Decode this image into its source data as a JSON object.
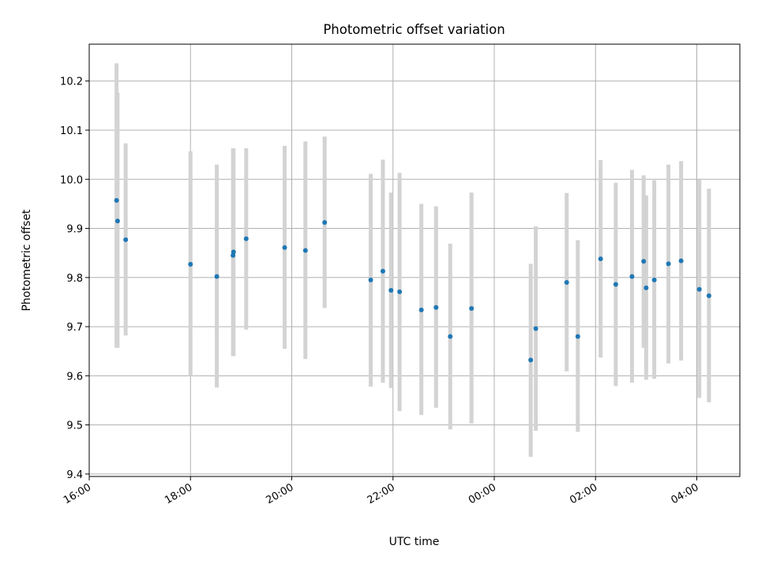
{
  "chart_data": {
    "type": "scatter",
    "title": "Photometric offset variation",
    "xlabel": "UTC time",
    "ylabel": "Photometric offset",
    "x_unit": "hours (UTC, continuing past midnight)",
    "xlim": [
      16.0,
      28.85
    ],
    "ylim": [
      9.395,
      10.275
    ],
    "grid": true,
    "x_ticks": [
      {
        "value": 16,
        "label": "16:00"
      },
      {
        "value": 18,
        "label": "18:00"
      },
      {
        "value": 20,
        "label": "20:00"
      },
      {
        "value": 22,
        "label": "22:00"
      },
      {
        "value": 24,
        "label": "00:00"
      },
      {
        "value": 26,
        "label": "02:00"
      },
      {
        "value": 28,
        "label": "04:00"
      }
    ],
    "y_ticks": [
      {
        "value": 9.4,
        "label": "9.4"
      },
      {
        "value": 9.5,
        "label": "9.5"
      },
      {
        "value": 9.6,
        "label": "9.6"
      },
      {
        "value": 9.7,
        "label": "9.7"
      },
      {
        "value": 9.8,
        "label": "9.8"
      },
      {
        "value": 9.9,
        "label": "9.9"
      },
      {
        "value": 10.0,
        "label": "10.0"
      },
      {
        "value": 10.1,
        "label": "10.1"
      },
      {
        "value": 10.2,
        "label": "10.2"
      }
    ],
    "series": [
      {
        "marker_color": "#1f77b4",
        "errorbar_color": "#d3d3d3",
        "points": [
          {
            "x": 16.54,
            "y": 9.957,
            "ylow": 9.657,
            "yhigh": 10.236
          },
          {
            "x": 16.56,
            "y": 9.915,
            "ylow": 9.657,
            "yhigh": 10.176
          },
          {
            "x": 16.72,
            "y": 9.877,
            "ylow": 9.682,
            "yhigh": 10.073
          },
          {
            "x": 18.0,
            "y": 9.827,
            "ylow": 9.6,
            "yhigh": 10.057
          },
          {
            "x": 18.52,
            "y": 9.802,
            "ylow": 9.576,
            "yhigh": 10.03
          },
          {
            "x": 18.84,
            "y": 9.845,
            "ylow": 9.64,
            "yhigh": 10.063
          },
          {
            "x": 18.85,
            "y": 9.852,
            "ylow": 9.64,
            "yhigh": 10.063
          },
          {
            "x": 19.1,
            "y": 9.879,
            "ylow": 9.694,
            "yhigh": 10.063
          },
          {
            "x": 19.86,
            "y": 9.861,
            "ylow": 9.655,
            "yhigh": 10.068
          },
          {
            "x": 20.27,
            "y": 9.855,
            "ylow": 9.634,
            "yhigh": 10.077
          },
          {
            "x": 20.65,
            "y": 9.912,
            "ylow": 9.738,
            "yhigh": 10.087
          },
          {
            "x": 21.56,
            "y": 9.795,
            "ylow": 9.578,
            "yhigh": 10.011
          },
          {
            "x": 21.8,
            "y": 9.813,
            "ylow": 9.586,
            "yhigh": 10.04
          },
          {
            "x": 21.96,
            "y": 9.774,
            "ylow": 9.575,
            "yhigh": 9.973
          },
          {
            "x": 22.13,
            "y": 9.771,
            "ylow": 9.528,
            "yhigh": 10.013
          },
          {
            "x": 22.56,
            "y": 9.734,
            "ylow": 9.52,
            "yhigh": 9.95
          },
          {
            "x": 22.85,
            "y": 9.739,
            "ylow": 9.535,
            "yhigh": 9.945
          },
          {
            "x": 23.13,
            "y": 9.68,
            "ylow": 9.491,
            "yhigh": 9.869
          },
          {
            "x": 23.55,
            "y": 9.737,
            "ylow": 9.503,
            "yhigh": 9.973
          },
          {
            "x": 24.72,
            "y": 9.632,
            "ylow": 9.435,
            "yhigh": 9.828
          },
          {
            "x": 24.82,
            "y": 9.696,
            "ylow": 9.488,
            "yhigh": 9.904
          },
          {
            "x": 25.43,
            "y": 9.79,
            "ylow": 9.609,
            "yhigh": 9.972
          },
          {
            "x": 25.65,
            "y": 9.68,
            "ylow": 9.486,
            "yhigh": 9.876
          },
          {
            "x": 26.1,
            "y": 9.838,
            "ylow": 9.637,
            "yhigh": 10.039
          },
          {
            "x": 26.4,
            "y": 9.786,
            "ylow": 9.579,
            "yhigh": 9.993
          },
          {
            "x": 26.72,
            "y": 9.802,
            "ylow": 9.586,
            "yhigh": 10.019
          },
          {
            "x": 26.95,
            "y": 9.833,
            "ylow": 9.657,
            "yhigh": 10.008
          },
          {
            "x": 27.0,
            "y": 9.779,
            "ylow": 9.592,
            "yhigh": 9.967
          },
          {
            "x": 27.16,
            "y": 9.795,
            "ylow": 9.594,
            "yhigh": 9.998
          },
          {
            "x": 27.44,
            "y": 9.828,
            "ylow": 9.625,
            "yhigh": 10.03
          },
          {
            "x": 27.69,
            "y": 9.834,
            "ylow": 9.631,
            "yhigh": 10.037
          },
          {
            "x": 28.05,
            "y": 9.776,
            "ylow": 9.555,
            "yhigh": 9.999
          },
          {
            "x": 28.24,
            "y": 9.763,
            "ylow": 9.546,
            "yhigh": 9.981
          }
        ]
      }
    ]
  }
}
